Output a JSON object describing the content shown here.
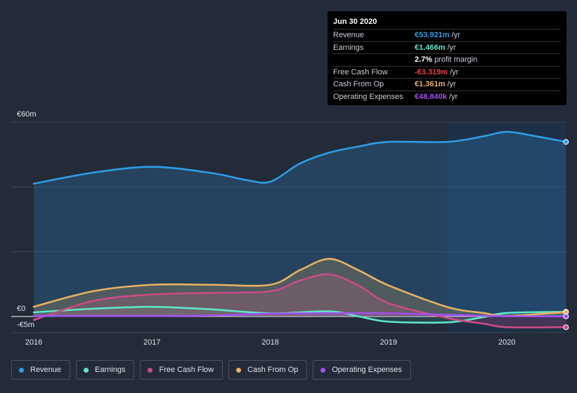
{
  "tooltip": {
    "date": "Jun 30 2020",
    "rows": [
      {
        "label": "Revenue",
        "value": "€53.921m",
        "unit": "/yr",
        "color": "#2f9de4"
      },
      {
        "label": "Earnings",
        "value": "€1.466m",
        "unit": "/yr",
        "color": "#5ee7c9"
      },
      {
        "label": "",
        "value": "2.7%",
        "unit": "profit margin",
        "color": "#ffffff"
      },
      {
        "label": "Free Cash Flow",
        "value": "-€3.319m",
        "unit": "/yr",
        "color": "#e5414d"
      },
      {
        "label": "Cash From Op",
        "value": "€1.361m",
        "unit": "/yr",
        "color": "#e9b162"
      },
      {
        "label": "Operating Expenses",
        "value": "€48.840k",
        "unit": "/yr",
        "color": "#a44ff0"
      }
    ]
  },
  "legend": [
    {
      "label": "Revenue",
      "color": "#2f9de4"
    },
    {
      "label": "Earnings",
      "color": "#5ee7c9"
    },
    {
      "label": "Free Cash Flow",
      "color": "#c94c87"
    },
    {
      "label": "Cash From Op",
      "color": "#e9b162"
    },
    {
      "label": "Operating Expenses",
      "color": "#a44ff0"
    }
  ],
  "chart_data": {
    "type": "area",
    "title": "",
    "xlabel": "",
    "ylabel": "",
    "ytick_labels": [
      "€60m",
      "€0",
      "-€5m"
    ],
    "xtick_labels": [
      "2016",
      "2017",
      "2018",
      "2019",
      "2020"
    ],
    "xtick_values": [
      2016,
      2017,
      2018,
      2019,
      2020
    ],
    "xlim": [
      2015.8,
      2020.5
    ],
    "ylim": [
      -5,
      60
    ],
    "highlight_start": 2019.5,
    "series": [
      {
        "name": "Revenue",
        "color": "#2f9de4",
        "x": [
          2016.0,
          2016.5,
          2017.0,
          2017.5,
          2017.8,
          2018.0,
          2018.25,
          2018.5,
          2018.75,
          2019.0,
          2019.5,
          2019.8,
          2020.0,
          2020.25,
          2020.5
        ],
        "y": [
          41,
          44.4,
          46.2,
          44.3,
          42.1,
          41.6,
          47.2,
          50.6,
          52.5,
          53.9,
          53.9,
          55.6,
          57.0,
          55.6,
          53.9
        ]
      },
      {
        "name": "Earnings",
        "color": "#5ee7c9",
        "x": [
          2016.0,
          2016.5,
          2017.0,
          2017.5,
          2018.0,
          2018.5,
          2018.75,
          2019.0,
          2019.5,
          2019.8,
          2020.0,
          2020.5
        ],
        "y": [
          1.3,
          2.4,
          3.0,
          2.2,
          1.0,
          1.6,
          0.0,
          -1.6,
          -1.8,
          -0.2,
          1.1,
          1.47
        ]
      },
      {
        "name": "Free Cash Flow",
        "color": "#c94c87",
        "x": [
          2016.0,
          2016.5,
          2017.0,
          2017.5,
          2018.0,
          2018.25,
          2018.5,
          2018.75,
          2019.0,
          2019.5,
          2019.8,
          2020.0,
          2020.5
        ],
        "y": [
          -1.1,
          4.8,
          6.8,
          7.3,
          7.8,
          11.1,
          13.0,
          9.5,
          4.1,
          -0.5,
          -2.2,
          -3.3,
          -3.3
        ]
      },
      {
        "name": "Cash From Op",
        "color": "#e9b162",
        "x": [
          2016.0,
          2016.5,
          2017.0,
          2017.5,
          2018.0,
          2018.25,
          2018.5,
          2018.75,
          2019.0,
          2019.5,
          2019.8,
          2020.0,
          2020.5
        ],
        "y": [
          3.0,
          7.8,
          9.8,
          9.8,
          9.8,
          14.3,
          17.8,
          14.2,
          9.6,
          2.9,
          1.1,
          0.2,
          1.36
        ]
      },
      {
        "name": "Operating Expenses",
        "color": "#a44ff0",
        "x": [
          2016.0,
          2016.5,
          2017.0,
          2017.5,
          2018.0,
          2018.5,
          2019.0,
          2019.5,
          2020.0,
          2020.5
        ],
        "y": [
          0.2,
          0.2,
          0.2,
          0.3,
          0.9,
          1.0,
          1.0,
          0.5,
          0.1,
          0.05
        ]
      }
    ]
  }
}
